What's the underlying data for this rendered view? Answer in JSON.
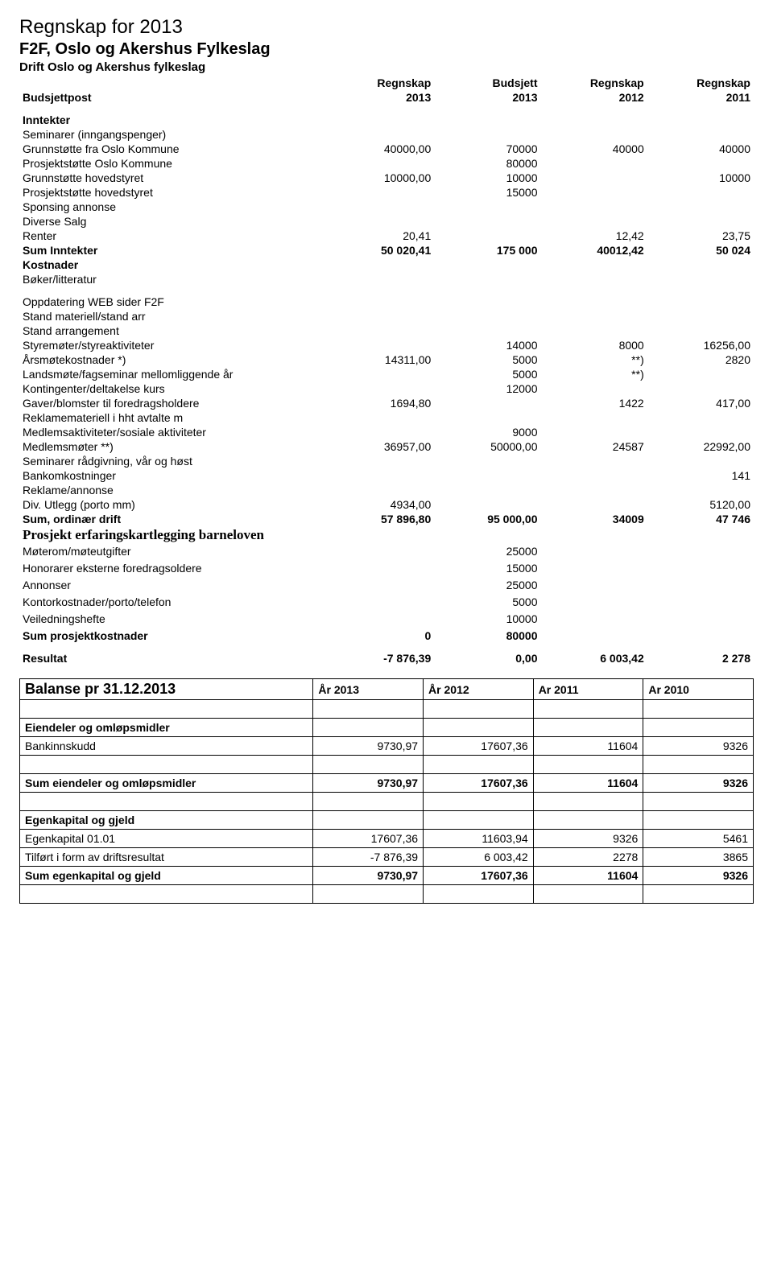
{
  "header": {
    "title": "Regnskap for 2013",
    "org": "F2F,  Oslo og Akershus Fylkeslag",
    "desc": "Drift Oslo og Akershus fylkeslag"
  },
  "colheaders": {
    "label": "Budsjettpost",
    "c1_top": "Regnskap",
    "c1_bot": "2013",
    "c2_top": "Budsjett",
    "c2_bot": "2013",
    "c3_top": "Regnskap",
    "c3_bot": "2012",
    "c4_top": "Regnskap",
    "c4_bot": "2011"
  },
  "income": {
    "section": "Inntekter",
    "rows": [
      {
        "label": "Seminarer (inngangspenger)",
        "c1": "",
        "c2": "",
        "c3": "",
        "c4": ""
      },
      {
        "label": "Grunnstøtte fra Oslo Kommune",
        "c1": "40000,00",
        "c2": "70000",
        "c3": "40000",
        "c4": "40000"
      },
      {
        "label": "Prosjektstøtte Oslo Kommune",
        "c1": "",
        "c2": "80000",
        "c3": "",
        "c4": ""
      },
      {
        "label": "Grunnstøtte hovedstyret",
        "c1": "10000,00",
        "c2": "10000",
        "c3": "",
        "c4": "10000"
      },
      {
        "label": "Prosjektstøtte hovedstyret",
        "c1": "",
        "c2": "15000",
        "c3": "",
        "c4": ""
      },
      {
        "label": "Sponsing annonse",
        "c1": "",
        "c2": "",
        "c3": "",
        "c4": ""
      },
      {
        "label": "Diverse Salg",
        "c1": "",
        "c2": "",
        "c3": "",
        "c4": ""
      },
      {
        "label": "Renter",
        "c1": "20,41",
        "c2": "",
        "c3": "12,42",
        "c4": "23,75"
      }
    ],
    "sum": {
      "label": "Sum Inntekter",
      "c1": "50 020,41",
      "c2": "175 000",
      "c3": "40012,42",
      "c4": "50 024"
    }
  },
  "costs": {
    "section": "Kostnader",
    "rows1": [
      {
        "label": "Bøker/litteratur",
        "c1": "",
        "c2": "",
        "c3": "",
        "c4": ""
      }
    ],
    "rows2": [
      {
        "label": "Oppdatering WEB sider F2F",
        "c1": "",
        "c2": "",
        "c3": "",
        "c4": ""
      },
      {
        "label": "Stand materiell/stand arr",
        "c1": "",
        "c2": "",
        "c3": "",
        "c4": ""
      },
      {
        "label": "Stand arrangement",
        "c1": "",
        "c2": "",
        "c3": "",
        "c4": ""
      },
      {
        "label": "Styremøter/styreaktiviteter",
        "c1": "",
        "c2": "14000",
        "c3": "8000",
        "c4": "16256,00"
      },
      {
        "label": "Årsmøtekostnader  *)",
        "c1": "14311,00",
        "c2": "5000",
        "c3": "**)",
        "c4": "2820"
      },
      {
        "label": "Landsmøte/fagseminar mellomliggende år",
        "c1": "",
        "c2": "5000",
        "c3": "**)",
        "c4": ""
      },
      {
        "label": "Kontingenter/deltakelse kurs",
        "c1": "",
        "c2": "12000",
        "c3": "",
        "c4": ""
      },
      {
        "label": "Gaver/blomster til foredragsholdere",
        "c1": "1694,80",
        "c2": "",
        "c3": "1422",
        "c4": "417,00"
      },
      {
        "label": "Reklamemateriell i hht avtalte m",
        "c1": "",
        "c2": "",
        "c3": "",
        "c4": ""
      },
      {
        "label": "Medlemsaktiviteter/sosiale aktiviteter",
        "c1": "",
        "c2": "9000",
        "c3": "",
        "c4": ""
      },
      {
        "label": "Medlemsmøter **)",
        "c1": "36957,00",
        "c2": "50000,00",
        "c3": "24587",
        "c4": "22992,00"
      },
      {
        "label": "Seminarer rådgivning, vår og høst",
        "c1": "",
        "c2": "",
        "c3": "",
        "c4": ""
      },
      {
        "label": "Bankomkostninger",
        "c1": "",
        "c2": "",
        "c3": "",
        "c4": "141"
      },
      {
        "label": "Reklame/annonse",
        "c1": "",
        "c2": "",
        "c3": "",
        "c4": ""
      },
      {
        "label": "Div. Utlegg (porto mm)",
        "c1": "4934,00",
        "c2": "",
        "c3": "",
        "c4": "5120,00"
      }
    ],
    "sum": {
      "label": "Sum, ordinær drift",
      "c1": "57 896,80",
      "c2": "95 000,00",
      "c3": "34009",
      "c4": "47 746"
    }
  },
  "project": {
    "section": "Prosjekt erfaringskartlegging barneloven",
    "rows": [
      {
        "label": "Møterom/møteutgifter",
        "c1": "",
        "c2": "25000",
        "c3": "",
        "c4": ""
      },
      {
        "label": "Honorarer eksterne foredragsoldere",
        "c1": "",
        "c2": "15000",
        "c3": "",
        "c4": ""
      },
      {
        "label": "Annonser",
        "c1": "",
        "c2": "25000",
        "c3": "",
        "c4": ""
      },
      {
        "label": "Kontorkostnader/porto/telefon",
        "c1": "",
        "c2": "5000",
        "c3": "",
        "c4": ""
      },
      {
        "label": "Veiledningshefte",
        "c1": "",
        "c2": "10000",
        "c3": "",
        "c4": ""
      }
    ],
    "sum": {
      "label": "Sum prosjektkostnader",
      "c1": "0",
      "c2": "80000",
      "c3": "",
      "c4": ""
    }
  },
  "result": {
    "label": "Resultat",
    "c1": "-7 876,39",
    "c2": "0,00",
    "c3": "6 003,42",
    "c4": "2 278"
  },
  "balance": {
    "header": {
      "label": "Balanse pr 31.12.2013",
      "c1": "År 2013",
      "c2": "År 2012",
      "c3": "Ar 2011",
      "c4": "Ar 2010"
    },
    "sections": [
      {
        "type": "empty"
      },
      {
        "type": "hdr",
        "label": "Eiendeler og omløpsmidler"
      },
      {
        "type": "row",
        "label": "Bankinnskudd",
        "c1": "9730,97",
        "c2": "17607,36",
        "c3": "11604",
        "c4": "9326"
      },
      {
        "type": "empty"
      },
      {
        "type": "boldrow",
        "label": "Sum eiendeler og omløpsmidler",
        "c1": "9730,97",
        "c2": "17607,36",
        "c3": "11604",
        "c4": "9326"
      },
      {
        "type": "empty"
      },
      {
        "type": "hdr",
        "label": "Egenkapital og gjeld"
      },
      {
        "type": "row",
        "label": "Egenkapital 01.01",
        "c1": "17607,36",
        "c2": "11603,94",
        "c3": "9326",
        "c4": "5461"
      },
      {
        "type": "row",
        "label": "Tilført i form av driftsresultat",
        "c1": "-7 876,39",
        "c2": "6 003,42",
        "c3": "2278",
        "c4": "3865"
      },
      {
        "type": "boldrow",
        "label": "Sum egenkapital og gjeld",
        "c1": "9730,97",
        "c2": "17607,36",
        "c3": "11604",
        "c4": "9326"
      },
      {
        "type": "empty"
      }
    ]
  }
}
